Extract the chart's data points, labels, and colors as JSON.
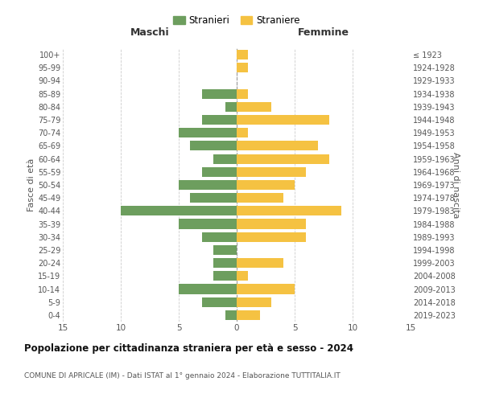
{
  "age_groups": [
    "0-4",
    "5-9",
    "10-14",
    "15-19",
    "20-24",
    "25-29",
    "30-34",
    "35-39",
    "40-44",
    "45-49",
    "50-54",
    "55-59",
    "60-64",
    "65-69",
    "70-74",
    "75-79",
    "80-84",
    "85-89",
    "90-94",
    "95-99",
    "100+"
  ],
  "birth_years": [
    "2019-2023",
    "2014-2018",
    "2009-2013",
    "2004-2008",
    "1999-2003",
    "1994-1998",
    "1989-1993",
    "1984-1988",
    "1979-1983",
    "1974-1978",
    "1969-1973",
    "1964-1968",
    "1959-1963",
    "1954-1958",
    "1949-1953",
    "1944-1948",
    "1939-1943",
    "1934-1938",
    "1929-1933",
    "1924-1928",
    "≤ 1923"
  ],
  "males": [
    1,
    3,
    5,
    2,
    2,
    2,
    3,
    5,
    10,
    4,
    5,
    3,
    2,
    4,
    5,
    3,
    1,
    3,
    0,
    0,
    0
  ],
  "females": [
    2,
    3,
    5,
    1,
    4,
    0,
    6,
    6,
    9,
    4,
    5,
    6,
    8,
    7,
    1,
    8,
    3,
    1,
    0,
    1,
    1
  ],
  "male_color": "#6d9e5e",
  "female_color": "#f5c242",
  "grid_color": "#cccccc",
  "title": "Popolazione per cittadinanza straniera per età e sesso - 2024",
  "subtitle": "COMUNE DI APRICALE (IM) - Dati ISTAT al 1° gennaio 2024 - Elaborazione TUTTITALIA.IT",
  "xlabel_left": "Maschi",
  "xlabel_right": "Femmine",
  "ylabel_left": "Fasce di età",
  "ylabel_right": "Anni di nascita",
  "legend_males": "Stranieri",
  "legend_females": "Straniere",
  "xlim": 15,
  "bar_height": 0.75
}
